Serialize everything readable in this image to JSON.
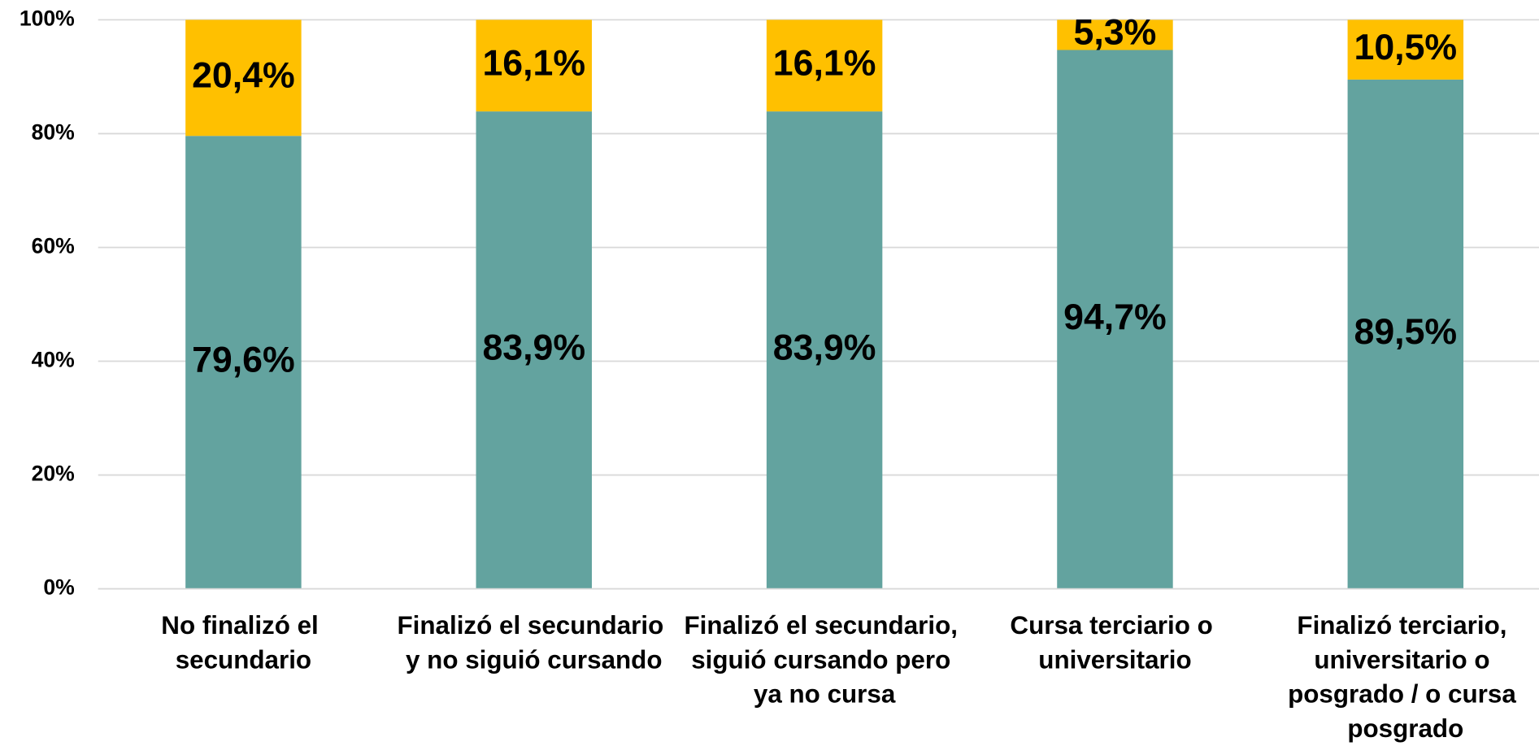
{
  "chart_data": {
    "type": "stacked_bar",
    "categories": [
      "No finalizó el secundario",
      "Finalizó el secundario y no siguió cursando",
      "Finalizó el secundario, siguió cursando pero ya no cursa",
      "Cursa terciario o universitario",
      "Finalizó terciario, universitario o posgrado / o cursa posgrado"
    ],
    "series": [
      {
        "color": "#63a39f",
        "values": [
          79.6,
          83.9,
          83.9,
          94.7,
          89.5
        ],
        "value_labels": [
          "79,6%",
          "83,9%",
          "83,9%",
          "94,7%",
          "89,5%"
        ]
      },
      {
        "color": "#ffc000",
        "values": [
          20.4,
          16.1,
          16.1,
          5.3,
          10.5
        ],
        "value_labels": [
          "20,4%",
          "16,1%",
          "16,1%",
          "5,3%",
          "10,5%"
        ]
      }
    ],
    "ylim": [
      0,
      100
    ],
    "yticks": [
      {
        "value": 0,
        "label": "0%"
      },
      {
        "value": 20,
        "label": "20%"
      },
      {
        "value": 40,
        "label": "40%"
      },
      {
        "value": 60,
        "label": "60%"
      },
      {
        "value": 80,
        "label": "80%"
      },
      {
        "value": 100,
        "label": "100%"
      }
    ],
    "grid": true
  }
}
